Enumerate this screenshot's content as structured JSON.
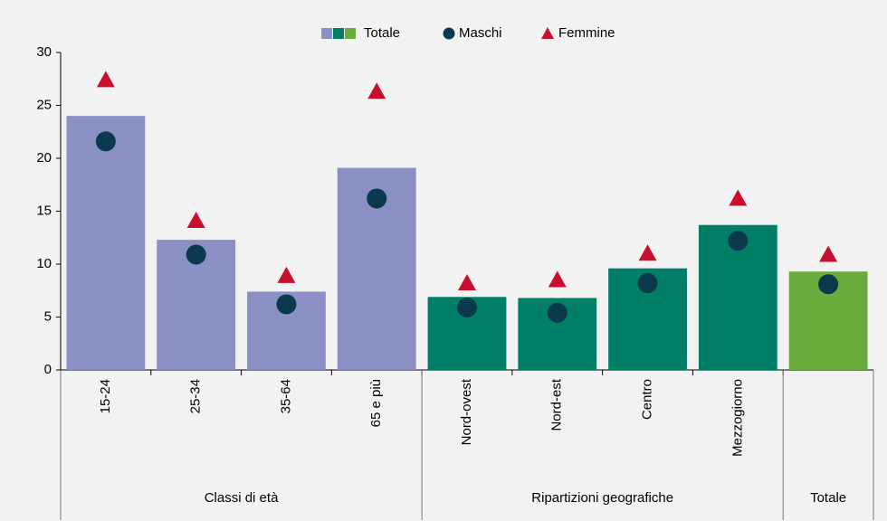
{
  "chart_data": {
    "type": "bar",
    "groups": [
      {
        "name": "Classi di età",
        "color": "#8a8fc4",
        "categories": [
          "15-24",
          "25-34",
          "35-64",
          "65 e più"
        ]
      },
      {
        "name": "Ripartizioni geografiche",
        "color": "#007f66",
        "categories": [
          "Nord-ovest",
          "Nord-est",
          "Centro",
          "Mezzogiorno"
        ]
      },
      {
        "name": "Totale",
        "color": "#6aab3c",
        "categories": [
          null
        ]
      }
    ],
    "series": [
      {
        "name": "Totale",
        "values": [
          24.0,
          12.3,
          7.4,
          19.1,
          6.9,
          6.8,
          9.6,
          13.7,
          9.3
        ]
      },
      {
        "name": "Maschi",
        "color": "#0b3a4e",
        "values": [
          21.6,
          10.9,
          6.2,
          16.2,
          5.9,
          5.4,
          8.2,
          12.2,
          8.1
        ]
      },
      {
        "name": "Femmine",
        "color": "#c8102e",
        "values": [
          27.4,
          14.1,
          8.9,
          26.3,
          8.2,
          8.5,
          11.0,
          16.2,
          10.9
        ]
      }
    ],
    "ylim": [
      0,
      30
    ],
    "yticks": [
      0,
      5,
      10,
      15,
      20,
      25,
      30
    ],
    "grid": false,
    "legend": "top"
  }
}
